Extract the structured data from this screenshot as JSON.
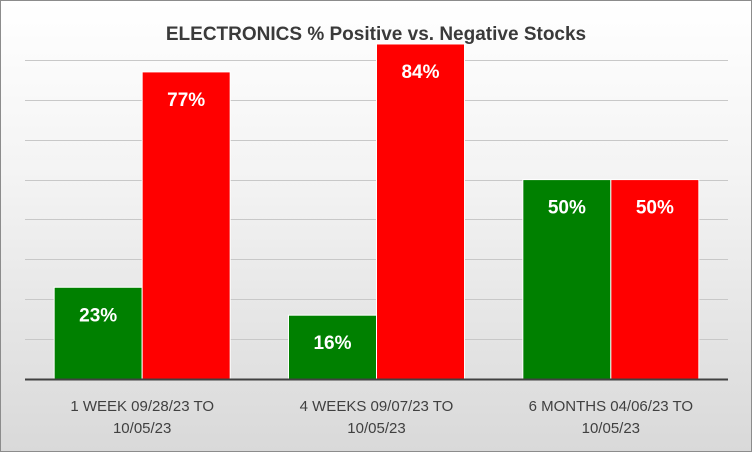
{
  "chart_data": {
    "type": "bar",
    "title": "ELECTRONICS % Positive vs. Negative Stocks",
    "categories": [
      [
        "1 WEEK 09/28/23 TO",
        "10/05/23"
      ],
      [
        "4 WEEKS 09/07/23 TO",
        "10/05/23"
      ],
      [
        "6 MONTHS 04/06/23 TO",
        "10/05/23"
      ]
    ],
    "series": [
      {
        "values": [
          23,
          16,
          50
        ],
        "labels": [
          "23%",
          "16%",
          "50%"
        ],
        "color": "#008000"
      },
      {
        "values": [
          77,
          84,
          50
        ],
        "labels": [
          "77%",
          "84%",
          "50%"
        ],
        "color": "#ff0000"
      }
    ],
    "ylim": [
      0,
      85
    ],
    "gridlines": true,
    "legend": "none",
    "xlabel": "",
    "ylabel": ""
  }
}
